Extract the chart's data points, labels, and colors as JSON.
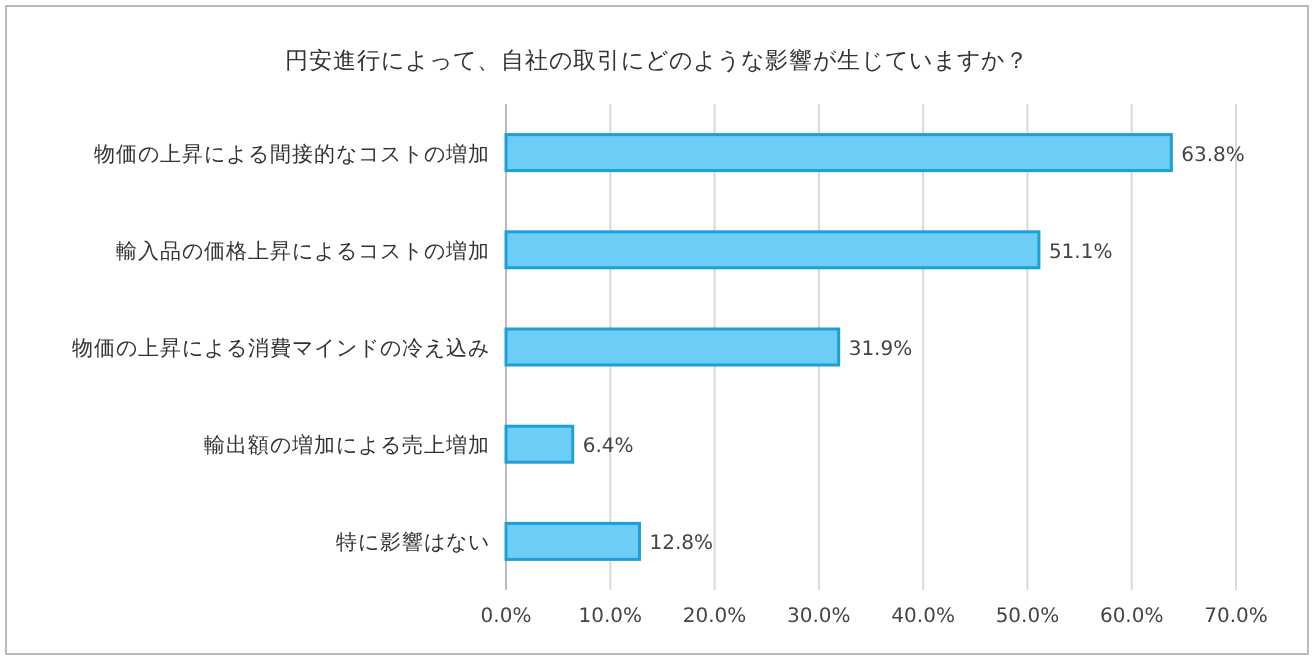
{
  "chart_data": {
    "type": "bar",
    "orientation": "horizontal",
    "title": "円安進行によって、自社の取引にどのような影響が生じていますか？",
    "categories": [
      "物価の上昇による間接的なコストの増加",
      "輸入品の価格上昇によるコストの増加",
      "物価の上昇による消費マインドの冷え込み",
      "輸出額の増加による売上増加",
      "特に影響はない"
    ],
    "values": [
      63.8,
      51.1,
      31.9,
      6.4,
      12.8
    ],
    "value_labels": [
      "63.8%",
      "51.1%",
      "31.9%",
      "6.4%",
      "12.8%"
    ],
    "color": "#6ccdf7",
    "xlim": [
      0,
      70
    ],
    "xticks": [
      {
        "value": 0,
        "label": "0.0%"
      },
      {
        "value": 10,
        "label": "10.0%"
      },
      {
        "value": 20,
        "label": "20.0%"
      },
      {
        "value": 30,
        "label": "30.0%"
      },
      {
        "value": 40,
        "label": "40.0%"
      },
      {
        "value": 50,
        "label": "50.0%"
      },
      {
        "value": 60,
        "label": "60.0%"
      },
      {
        "value": 70,
        "label": "70.0%"
      }
    ],
    "grid": "x"
  }
}
